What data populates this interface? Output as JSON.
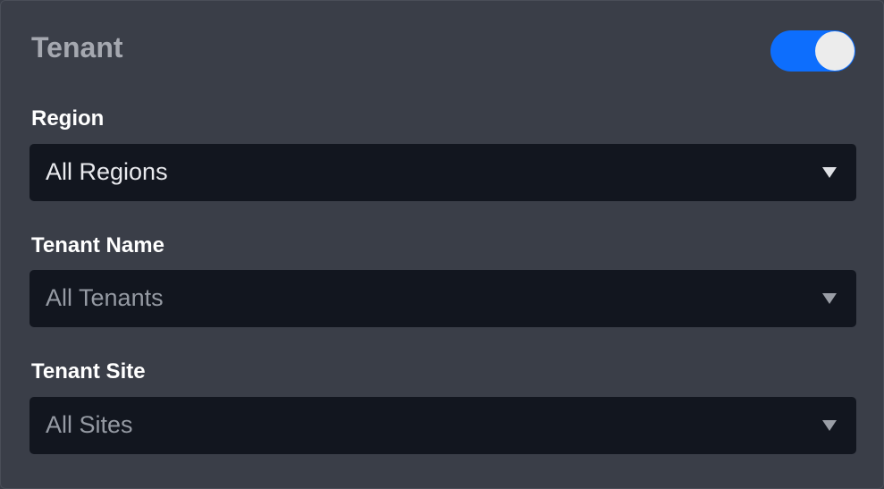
{
  "panel": {
    "title": "Tenant",
    "toggle": {
      "on": true,
      "color": "#0d6efd"
    }
  },
  "fields": [
    {
      "label": "Region",
      "value": "All Regions",
      "enabled": true
    },
    {
      "label": "Tenant Name",
      "value": "All Tenants",
      "enabled": false
    },
    {
      "label": "Tenant Site",
      "value": "All Sites",
      "enabled": false
    }
  ]
}
